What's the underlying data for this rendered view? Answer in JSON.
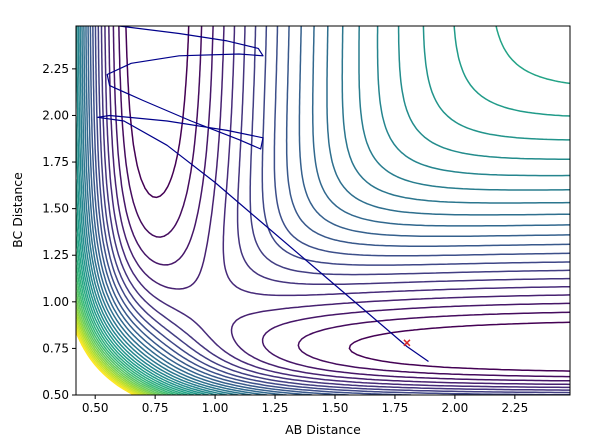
{
  "chart_data": {
    "type": "contour",
    "title": "",
    "xlabel": "AB Distance",
    "ylabel": "BC Distance",
    "xlim": [
      0.42,
      2.48
    ],
    "ylim": [
      0.5,
      2.48
    ],
    "xticks": [
      0.5,
      0.75,
      1.0,
      1.25,
      1.5,
      1.75,
      2.0,
      2.25
    ],
    "yticks": [
      0.5,
      0.75,
      1.0,
      1.25,
      1.5,
      1.75,
      2.0,
      2.25
    ],
    "xtick_labels": [
      "0.50",
      "0.75",
      "1.00",
      "1.25",
      "1.50",
      "1.75",
      "2.00",
      "2.25"
    ],
    "ytick_labels": [
      "0.50",
      "0.75",
      "1.00",
      "1.25",
      "1.50",
      "1.75",
      "2.00",
      "2.25"
    ],
    "colormap": "viridis",
    "grid": false,
    "trajectory": {
      "color": "#00008b",
      "points": [
        [
          1.89,
          0.68
        ],
        [
          1.8,
          0.76
        ],
        [
          1.6,
          0.98
        ],
        [
          1.4,
          1.2
        ],
        [
          1.2,
          1.42
        ],
        [
          1.0,
          1.64
        ],
        [
          0.8,
          1.84
        ],
        [
          0.62,
          1.97
        ],
        [
          0.51,
          1.99
        ],
        [
          0.56,
          2.0
        ],
        [
          0.8,
          1.97
        ],
        [
          1.05,
          1.92
        ],
        [
          1.2,
          1.88
        ],
        [
          1.19,
          1.82
        ],
        [
          1.1,
          1.87
        ],
        [
          0.9,
          1.97
        ],
        [
          0.7,
          2.08
        ],
        [
          0.56,
          2.16
        ],
        [
          0.55,
          2.22
        ],
        [
          0.65,
          2.28
        ],
        [
          0.85,
          2.32
        ],
        [
          1.1,
          2.33
        ],
        [
          1.2,
          2.32
        ],
        [
          1.18,
          2.36
        ],
        [
          1.05,
          2.4
        ],
        [
          0.85,
          2.44
        ],
        [
          0.6,
          2.48
        ]
      ]
    },
    "marker": {
      "x": 1.8,
      "y": 0.78,
      "symbol": "x",
      "color": "#d62728"
    }
  }
}
